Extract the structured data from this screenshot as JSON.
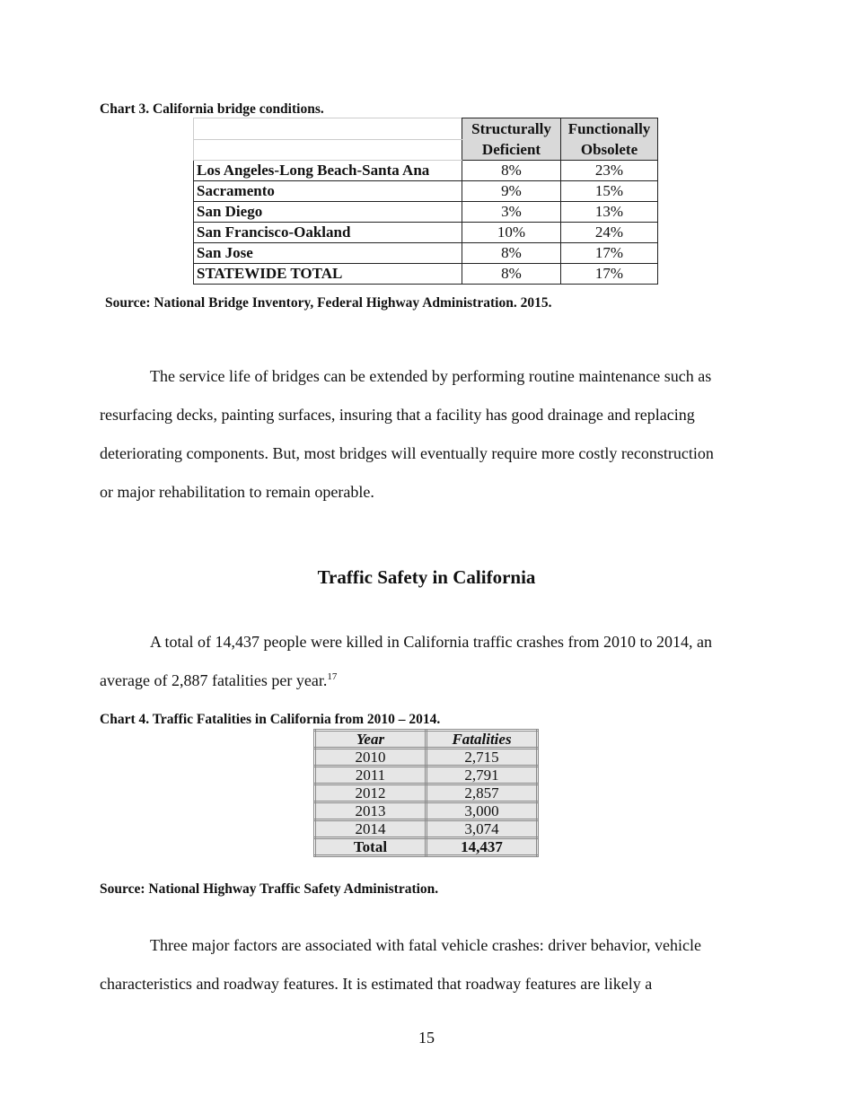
{
  "chart3": {
    "caption": "Chart 3. California bridge conditions.",
    "headers": [
      [
        "Structurally",
        "Deficient"
      ],
      [
        "Functionally",
        "Obsolete"
      ]
    ],
    "rows": [
      {
        "region": "Los Angeles-Long Beach-Santa Ana",
        "structurally_deficient": "8%",
        "functionally_obsolete": "23%"
      },
      {
        "region": "Sacramento",
        "structurally_deficient": "9%",
        "functionally_obsolete": "15%"
      },
      {
        "region": "San Diego",
        "structurally_deficient": "3%",
        "functionally_obsolete": "13%"
      },
      {
        "region": "San Francisco-Oakland",
        "structurally_deficient": "10%",
        "functionally_obsolete": "24%"
      },
      {
        "region": "San Jose",
        "structurally_deficient": "8%",
        "functionally_obsolete": "17%"
      },
      {
        "region": "STATEWIDE TOTAL",
        "structurally_deficient": "8%",
        "functionally_obsolete": "17%"
      }
    ],
    "source": "Source: National Bridge Inventory, Federal Highway Administration. 2015."
  },
  "paragraph1": [
    "The service life of bridges can be extended by performing routine maintenance such as",
    "resurfacing decks, painting surfaces, insuring that a facility has good drainage and replacing",
    "deteriorating components.  But, most bridges will eventually require more costly reconstruction",
    "or major rehabilitation to remain operable."
  ],
  "section_heading": "Traffic Safety in California",
  "paragraph2": [
    "A total of 14,437 people were killed in California traffic crashes from 2010 to 2014, an",
    "average of 2,887 fatalities per year."
  ],
  "footnote_ref": "17",
  "chart4": {
    "caption": "Chart 4.  Traffic Fatalities in California from 2010 – 2014.",
    "headers": [
      "Year",
      "Fatalities"
    ],
    "rows": [
      {
        "year": "2010",
        "fatalities": "2,715"
      },
      {
        "year": "2011",
        "fatalities": "2,791"
      },
      {
        "year": "2012",
        "fatalities": "2,857"
      },
      {
        "year": "2013",
        "fatalities": "3,000"
      },
      {
        "year": "2014",
        "fatalities": "3,074"
      }
    ],
    "total": {
      "label": "Total",
      "value": "14,437"
    },
    "source": "Source: National Highway Traffic Safety Administration."
  },
  "paragraph3": [
    "Three major factors are associated with fatal vehicle crashes: driver behavior, vehicle",
    "characteristics and roadway features.  It is estimated that roadway features are likely a"
  ],
  "page_number": "15"
}
